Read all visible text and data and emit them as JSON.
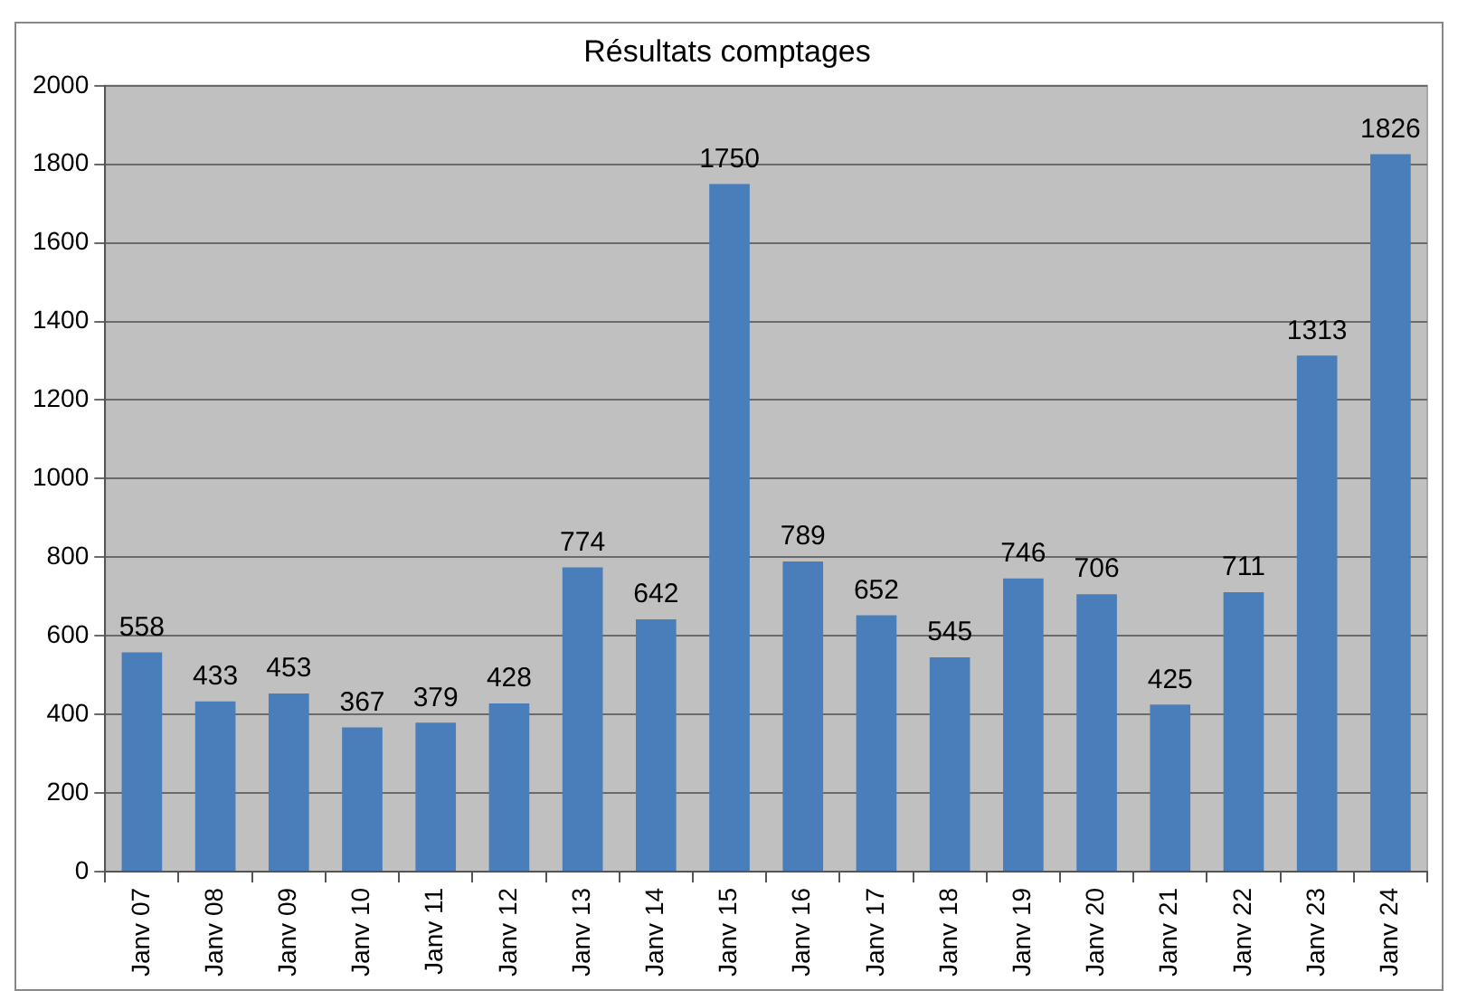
{
  "chart_data": {
    "type": "bar",
    "title": "Résultats comptages",
    "categories": [
      "Janv 07",
      "Janv 08",
      "Janv 09",
      "Janv 10",
      "Janv 11",
      "Janv 12",
      "Janv 13",
      "Janv 14",
      "Janv 15",
      "Janv 16",
      "Janv 17",
      "Janv 18",
      "Janv 19",
      "Janv 20",
      "Janv 21",
      "Janv 22",
      "Janv 23",
      "Janv 24"
    ],
    "values": [
      558,
      433,
      453,
      367,
      379,
      428,
      774,
      642,
      1750,
      789,
      652,
      545,
      746,
      706,
      425,
      711,
      1313,
      1826
    ],
    "color": "#4a7ebb",
    "ylim": [
      0,
      2000
    ],
    "yticks": [
      0,
      200,
      400,
      600,
      800,
      1000,
      1200,
      1400,
      1600,
      1800,
      2000
    ],
    "grid": "y",
    "data_labels": true,
    "legend": false
  }
}
